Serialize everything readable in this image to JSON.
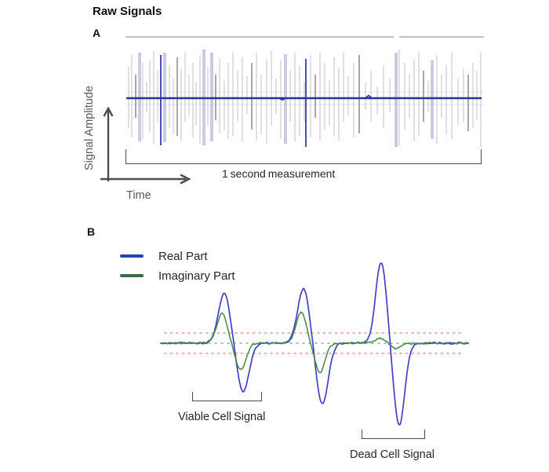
{
  "title": "Raw Signals",
  "panel_a": {
    "label": "A",
    "y_axis_label": "Signal Amplitude",
    "x_axis_label": "Time",
    "bracket_label": "1 second measurement"
  },
  "panel_b": {
    "label": "B",
    "legend": [
      {
        "label": "Real Part",
        "color": "#2741b5"
      },
      {
        "label": "Imaginary Part",
        "color": "#3a6b42"
      }
    ],
    "viable_label": "Viable Cell Signal",
    "dead_label": "Dead Cell Signal"
  },
  "colors": {
    "real_part_trace": "#4040c8",
    "imaginary_part_trace": "#3f8a46",
    "threshold_dotted": "#f2908f",
    "baseline_dotted": "#9898dc",
    "panel_a_baseline": "#2d2d9c",
    "panel_a_top_rule": "#b9b9b9",
    "panel_a_faint_rule": "#e4e4ea",
    "axis_arrow": "#4d4d4d",
    "bracket": "#4a4a4a"
  },
  "chart_data": [
    {
      "id": "panel_a",
      "type": "line",
      "title": "Raw signal over a 1 second measurement",
      "xlabel": "Time",
      "ylabel": "Signal Amplitude",
      "x_span_label": "1 second measurement",
      "description": "Dense train of random bipolar transient spikes around a flat dark-blue baseline; faint threshold rules just above and below baseline; light gray rule across the top with a small gap near 3/4 of the width.",
      "baseline_y": 87,
      "faint_rule_ys": [
        79,
        95
      ],
      "top_rule_y": 9,
      "top_rule_segments": [
        [
          60,
          402
        ],
        [
          409,
          517
        ]
      ],
      "plot_x_range": [
        60,
        517
      ],
      "spike_styles": [
        {
          "color": "#c9c9ce",
          "width": 1.4,
          "opacity": 0.8
        },
        {
          "color": "#aba6d0",
          "width": 4.0,
          "opacity": 0.6
        },
        {
          "color": "#97979f",
          "width": 2.0,
          "opacity": 0.85
        },
        {
          "color": "#3b3bb2",
          "width": 2.0,
          "opacity": 0.9
        }
      ],
      "spikes_format": "[x_offset_px, up_px, down_px, style_index]",
      "spikes": [
        [
          4,
          40,
          38,
          0
        ],
        [
          8,
          55,
          50,
          0
        ],
        [
          13,
          30,
          25,
          2
        ],
        [
          18,
          58,
          55,
          1
        ],
        [
          22,
          45,
          52,
          0
        ],
        [
          27,
          20,
          18,
          0
        ],
        [
          31,
          48,
          44,
          0
        ],
        [
          36,
          60,
          58,
          0
        ],
        [
          41,
          35,
          30,
          0
        ],
        [
          45,
          55,
          60,
          3
        ],
        [
          50,
          58,
          56,
          1
        ],
        [
          56,
          42,
          38,
          0
        ],
        [
          61,
          25,
          45,
          0
        ],
        [
          66,
          52,
          48,
          2
        ],
        [
          71,
          38,
          55,
          0
        ],
        [
          76,
          58,
          30,
          0
        ],
        [
          81,
          30,
          22,
          0
        ],
        [
          86,
          45,
          50,
          0
        ],
        [
          90,
          20,
          35,
          0
        ],
        [
          95,
          55,
          58,
          0
        ],
        [
          100,
          62,
          60,
          1
        ],
        [
          105,
          40,
          35,
          0
        ],
        [
          110,
          58,
          55,
          1
        ],
        [
          115,
          30,
          28,
          2
        ],
        [
          120,
          50,
          45,
          0
        ],
        [
          126,
          22,
          40,
          0
        ],
        [
          131,
          45,
          52,
          0
        ],
        [
          137,
          58,
          48,
          0
        ],
        [
          143,
          35,
          30,
          0
        ],
        [
          149,
          52,
          56,
          0
        ],
        [
          155,
          28,
          20,
          0
        ],
        [
          161,
          45,
          40,
          2
        ],
        [
          167,
          58,
          54,
          0
        ],
        [
          173,
          30,
          46,
          0
        ],
        [
          180,
          50,
          58,
          0
        ],
        [
          186,
          60,
          35,
          0
        ],
        [
          192,
          25,
          20,
          0
        ],
        [
          198,
          48,
          52,
          0
        ],
        [
          204,
          56,
          58,
          1
        ],
        [
          210,
          35,
          30,
          0
        ],
        [
          216,
          58,
          55,
          0
        ],
        [
          222,
          42,
          48,
          0
        ],
        [
          228,
          20,
          30,
          0
        ],
        [
          230,
          50,
          62,
          3
        ],
        [
          236,
          55,
          50,
          0
        ],
        [
          242,
          30,
          25,
          2
        ],
        [
          248,
          58,
          54,
          0
        ],
        [
          254,
          45,
          40,
          0
        ],
        [
          260,
          22,
          35,
          0
        ],
        [
          266,
          52,
          48,
          0
        ],
        [
          272,
          38,
          55,
          0
        ],
        [
          278,
          58,
          30,
          0
        ],
        [
          284,
          28,
          22,
          0
        ],
        [
          291,
          45,
          50,
          0
        ],
        [
          298,
          55,
          45,
          2
        ],
        [
          306,
          20,
          15,
          0
        ],
        [
          313,
          35,
          30,
          0
        ],
        [
          321,
          15,
          20,
          0
        ],
        [
          329,
          42,
          38,
          0
        ],
        [
          337,
          25,
          18,
          0
        ],
        [
          345,
          58,
          62,
          1
        ],
        [
          349,
          62,
          60,
          0
        ],
        [
          356,
          45,
          40,
          0
        ],
        [
          362,
          30,
          25,
          0
        ],
        [
          368,
          50,
          55,
          0
        ],
        [
          374,
          58,
          48,
          0
        ],
        [
          380,
          35,
          30,
          2
        ],
        [
          386,
          22,
          18,
          0
        ],
        [
          391,
          48,
          52,
          1
        ],
        [
          397,
          55,
          58,
          0
        ],
        [
          403,
          30,
          25,
          0
        ],
        [
          409,
          42,
          46,
          0
        ],
        [
          416,
          58,
          52,
          0
        ],
        [
          424,
          25,
          35,
          0
        ],
        [
          431,
          38,
          30,
          0
        ],
        [
          437,
          30,
          42,
          2
        ],
        [
          443,
          45,
          38,
          0
        ],
        [
          448,
          35,
          28,
          0
        ],
        [
          453,
          58,
          62,
          0
        ]
      ]
    },
    {
      "id": "panel_b",
      "type": "line",
      "title": "Real and imaginary parts of three cell transit events",
      "legend_position": "top-left",
      "units": "px in panel-B local coordinates, baseline_y = 107, x range 5-397",
      "baseline_y": 107,
      "trace_x_range": [
        5,
        397
      ],
      "dotted_x_range": [
        10,
        390
      ],
      "threshold_ys": [
        94,
        120
      ],
      "noise": {
        "seed": 42,
        "amplitude": 1.0
      },
      "series": [
        {
          "name": "Real Part",
          "color": "#4040c8",
          "width": 1.7,
          "pulses": [
            {
              "label": "viable",
              "peak_x": 86,
              "peak_amp": 64,
              "trough_x": 110,
              "trough_amp": 62,
              "sigma": 7.5
            },
            {
              "label": "viable",
              "peak_x": 187,
              "peak_amp": 70,
              "trough_x": 211,
              "trough_amp": 77,
              "sigma": 7.5
            },
            {
              "label": "dead",
              "peak_x": 286,
              "peak_amp": 103,
              "trough_x": 309,
              "trough_amp": 104,
              "sigma": 7.0
            }
          ]
        },
        {
          "name": "Imaginary Part",
          "color": "#3f8a46",
          "width": 1.5,
          "pulses": [
            {
              "label": "viable",
              "peak_x": 83,
              "peak_amp": 38,
              "trough_x": 107,
              "trough_amp": 34,
              "sigma": 6.5
            },
            {
              "label": "viable",
              "peak_x": 184,
              "peak_amp": 39,
              "trough_x": 208,
              "trough_amp": 37,
              "sigma": 6.5
            },
            {
              "label": "dead",
              "peak_x": 284,
              "peak_amp": 6,
              "trough_x": 305,
              "trough_amp": 7,
              "sigma": 6.0
            }
          ]
        }
      ],
      "annotations": [
        {
          "text": "Viable Cell Signal",
          "bracket_x_range_page": [
            245,
            332
          ]
        },
        {
          "text": "Dead Cell Signal",
          "bracket_x_range_page": [
            461,
            540
          ]
        }
      ]
    }
  ]
}
